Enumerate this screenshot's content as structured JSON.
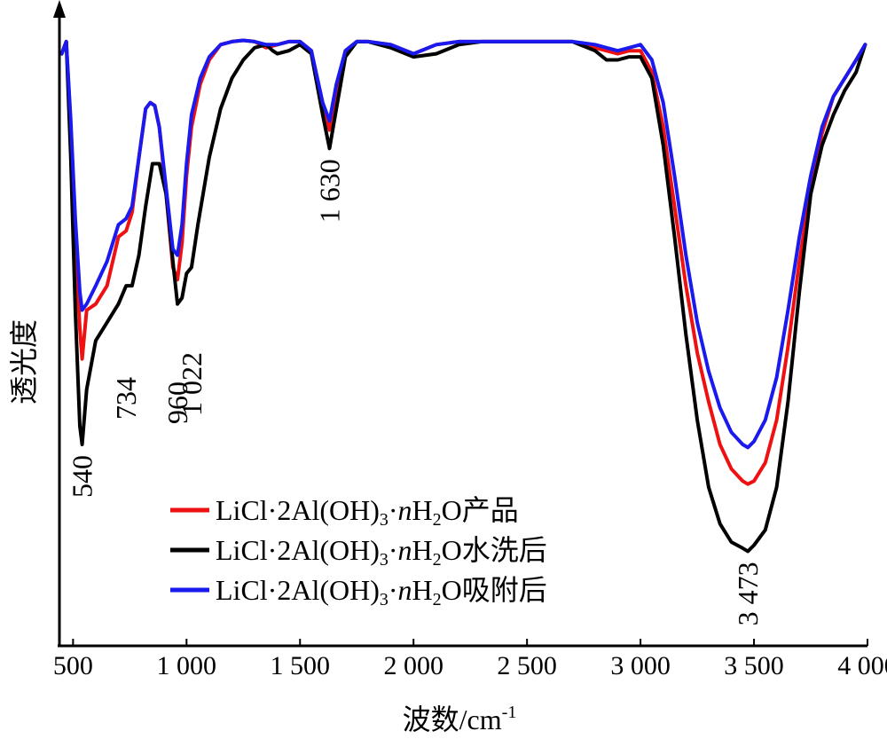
{
  "chart_data": {
    "type": "line",
    "xlabel": "波数/cm",
    "xlabel_unit_sup": "-1",
    "ylabel": "透光度",
    "xlim": [
      440,
      4000
    ],
    "ylim": [
      0,
      1
    ],
    "x_ticks": [
      500,
      1000,
      1500,
      2000,
      2500,
      3000,
      3500,
      4000
    ],
    "x_tick_labels": [
      "500",
      "1 000",
      "1 500",
      "2 000",
      "2 500",
      "3 000",
      "3 500",
      "4 000"
    ],
    "y_ticks_shown": false,
    "grid": false,
    "legend_position": "lower-left",
    "series": [
      {
        "name": "LiCl·2Al(OH)₃·nH₂O产品",
        "legend": {
          "pre": "LiCl·2Al(OH)",
          "sub": "3",
          "dot": "·",
          "n": "n",
          "h": "H",
          "sub2": "2",
          "post": "O产品"
        },
        "color": "#ee1111",
        "x": [
          450,
          470,
          490,
          510,
          530,
          540,
          560,
          600,
          650,
          700,
          734,
          760,
          790,
          820,
          840,
          860,
          880,
          910,
          940,
          960,
          980,
          1000,
          1022,
          1060,
          1100,
          1150,
          1200,
          1250,
          1300,
          1350,
          1400,
          1450,
          1500,
          1550,
          1600,
          1630,
          1660,
          1700,
          1750,
          1800,
          1900,
          2000,
          2100,
          2200,
          2300,
          2400,
          2500,
          2600,
          2700,
          2800,
          2850,
          2900,
          2950,
          3000,
          3050,
          3100,
          3150,
          3200,
          3250,
          3300,
          3350,
          3400,
          3450,
          3473,
          3500,
          3550,
          3600,
          3650,
          3700,
          3750,
          3800,
          3850,
          3900,
          3950,
          3990
        ],
        "y": [
          0.97,
          0.99,
          0.85,
          0.66,
          0.52,
          0.47,
          0.55,
          0.56,
          0.59,
          0.67,
          0.68,
          0.71,
          0.8,
          0.88,
          0.89,
          0.885,
          0.85,
          0.74,
          0.62,
          0.6,
          0.66,
          0.77,
          0.85,
          0.92,
          0.96,
          0.985,
          0.99,
          0.992,
          0.99,
          0.98,
          0.985,
          0.99,
          0.99,
          0.975,
          0.88,
          0.845,
          0.91,
          0.975,
          0.99,
          0.99,
          0.985,
          0.97,
          0.985,
          0.99,
          0.99,
          0.99,
          0.99,
          0.99,
          0.99,
          0.98,
          0.975,
          0.97,
          0.975,
          0.975,
          0.94,
          0.85,
          0.72,
          0.59,
          0.48,
          0.4,
          0.33,
          0.29,
          0.27,
          0.265,
          0.27,
          0.3,
          0.37,
          0.49,
          0.63,
          0.75,
          0.84,
          0.9,
          0.93,
          0.96,
          0.985
        ]
      },
      {
        "name": "LiCl·2Al(OH)₃·nH₂O水洗后",
        "legend": {
          "pre": "LiCl·2Al(OH)",
          "sub": "3",
          "dot": "·",
          "n": "n",
          "h": "H",
          "sub2": "2",
          "post": "O水洗后"
        },
        "color": "#000000",
        "x": [
          450,
          470,
          490,
          510,
          530,
          540,
          560,
          600,
          650,
          700,
          734,
          760,
          790,
          820,
          850,
          880,
          910,
          940,
          960,
          980,
          1000,
          1022,
          1050,
          1100,
          1150,
          1200,
          1250,
          1300,
          1350,
          1380,
          1400,
          1450,
          1500,
          1550,
          1600,
          1630,
          1660,
          1700,
          1750,
          1800,
          1900,
          2000,
          2100,
          2200,
          2300,
          2400,
          2500,
          2600,
          2700,
          2800,
          2850,
          2900,
          2950,
          3000,
          3050,
          3100,
          3150,
          3200,
          3250,
          3300,
          3350,
          3400,
          3450,
          3473,
          3500,
          3550,
          3600,
          3650,
          3700,
          3750,
          3800,
          3850,
          3900,
          3950,
          3990
        ],
        "y": [
          0.97,
          0.99,
          0.8,
          0.55,
          0.36,
          0.33,
          0.42,
          0.5,
          0.53,
          0.56,
          0.59,
          0.59,
          0.64,
          0.72,
          0.79,
          0.79,
          0.74,
          0.63,
          0.56,
          0.57,
          0.61,
          0.62,
          0.69,
          0.8,
          0.88,
          0.93,
          0.96,
          0.98,
          0.985,
          0.975,
          0.97,
          0.975,
          0.985,
          0.97,
          0.87,
          0.815,
          0.88,
          0.965,
          0.99,
          0.99,
          0.98,
          0.965,
          0.97,
          0.985,
          0.99,
          0.99,
          0.99,
          0.99,
          0.99,
          0.975,
          0.96,
          0.96,
          0.965,
          0.965,
          0.93,
          0.82,
          0.67,
          0.51,
          0.37,
          0.26,
          0.2,
          0.17,
          0.16,
          0.155,
          0.165,
          0.19,
          0.26,
          0.4,
          0.58,
          0.74,
          0.82,
          0.87,
          0.91,
          0.94,
          0.985
        ]
      },
      {
        "name": "LiCl·2Al(OH)₃·nH₂O吸附后",
        "legend": {
          "pre": "LiCl·2Al(OH)",
          "sub": "3",
          "dot": "·",
          "n": "n",
          "h": "H",
          "sub2": "2",
          "post": "O吸附后"
        },
        "color": "#1a1aee",
        "x": [
          450,
          470,
          490,
          510,
          530,
          540,
          560,
          600,
          650,
          700,
          734,
          760,
          790,
          820,
          840,
          860,
          880,
          910,
          940,
          960,
          980,
          1000,
          1022,
          1060,
          1100,
          1150,
          1200,
          1250,
          1300,
          1350,
          1400,
          1450,
          1500,
          1550,
          1600,
          1630,
          1660,
          1700,
          1750,
          1800,
          1900,
          2000,
          2100,
          2200,
          2300,
          2400,
          2500,
          2600,
          2700,
          2800,
          2850,
          2900,
          2950,
          3000,
          3050,
          3100,
          3150,
          3200,
          3250,
          3300,
          3350,
          3400,
          3450,
          3473,
          3500,
          3550,
          3600,
          3650,
          3700,
          3750,
          3800,
          3850,
          3900,
          3950,
          3990
        ],
        "y": [
          0.97,
          0.99,
          0.86,
          0.7,
          0.58,
          0.55,
          0.56,
          0.59,
          0.63,
          0.69,
          0.7,
          0.72,
          0.8,
          0.88,
          0.89,
          0.885,
          0.85,
          0.75,
          0.65,
          0.64,
          0.69,
          0.79,
          0.87,
          0.93,
          0.965,
          0.985,
          0.99,
          0.992,
          0.99,
          0.985,
          0.985,
          0.99,
          0.99,
          0.975,
          0.89,
          0.86,
          0.92,
          0.975,
          0.99,
          0.99,
          0.985,
          0.97,
          0.985,
          0.99,
          0.99,
          0.99,
          0.99,
          0.99,
          0.99,
          0.985,
          0.98,
          0.975,
          0.98,
          0.985,
          0.96,
          0.89,
          0.77,
          0.64,
          0.53,
          0.45,
          0.39,
          0.35,
          0.33,
          0.325,
          0.335,
          0.37,
          0.44,
          0.55,
          0.67,
          0.77,
          0.85,
          0.9,
          0.93,
          0.96,
          0.985
        ]
      }
    ],
    "annotations": [
      {
        "label": "540",
        "x": 540
      },
      {
        "label": "734",
        "x": 734
      },
      {
        "label": "960",
        "x": 960
      },
      {
        "label": "1 022",
        "x": 1022
      },
      {
        "label": "1 630",
        "x": 1630
      },
      {
        "label": "3 473",
        "x": 3473
      }
    ]
  }
}
